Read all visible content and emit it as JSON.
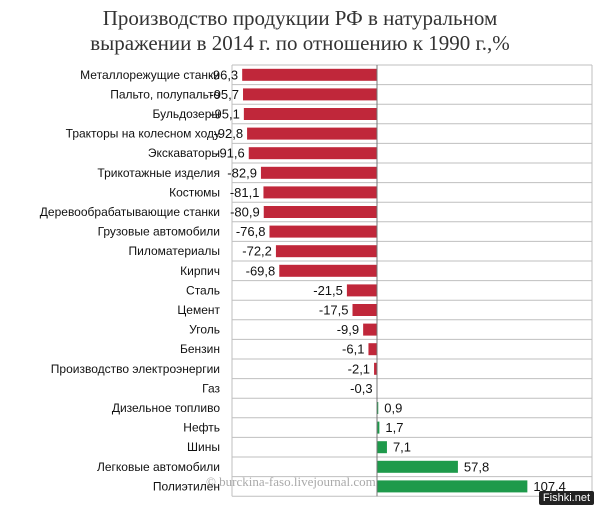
{
  "title_line1": "Производство продукции РФ в натуральном",
  "title_line2": "выражении в 2014 г. по отношению к 1990 г.,%",
  "watermark": "© burckina-faso.livejournal.com",
  "corner_mark": "Fishki.net",
  "colors": {
    "negative": "#c0273a",
    "positive": "#1e9a4b",
    "grid": "#bfbfbf"
  },
  "chart_data": {
    "type": "bar",
    "orientation": "horizontal",
    "categories": [
      "Металлорежущие станки",
      "Пальто, полупальто",
      "Бульдозеры",
      "Тракторы на колесном ходу",
      "Экскаваторы",
      "Трикотажные изделия",
      "Костюмы",
      "Деревообрабатывающие станки",
      "Грузовые автомобили",
      "Пиломатериалы",
      "Кирпич",
      "Сталь",
      "Цемент",
      "Уголь",
      "Бензин",
      "Производство электроэнергии",
      "Газ",
      "Дизельное топливо",
      "Нефть",
      "Шины",
      "Легковые автомобили",
      "Полиэтилен"
    ],
    "values": [
      -96.3,
      -95.7,
      -95.1,
      -92.8,
      -91.6,
      -82.9,
      -81.1,
      -80.9,
      -76.8,
      -72.2,
      -69.8,
      -21.5,
      -17.5,
      -9.9,
      -6.1,
      -2.1,
      -0.3,
      0.9,
      1.7,
      7.1,
      57.8,
      107.4
    ],
    "labels": [
      "-96,3",
      "-95,7",
      "-95,1",
      "-92,8",
      "-91,6",
      "-82,9",
      "-81,1",
      "-80,9",
      "-76,8",
      "-72,2",
      "-69,8",
      "-21,5",
      "-17,5",
      "-9,9",
      "-6,1",
      "-2,1",
      "-0,3",
      "0,9",
      "1,7",
      "7,1",
      "57,8",
      "107,4"
    ],
    "title": "Производство продукции РФ в натуральном выражении в 2014 г. по отношению к 1990 г.,%",
    "xlabel": "",
    "ylabel": "",
    "xlim": [
      -100,
      110
    ],
    "grid": true
  }
}
